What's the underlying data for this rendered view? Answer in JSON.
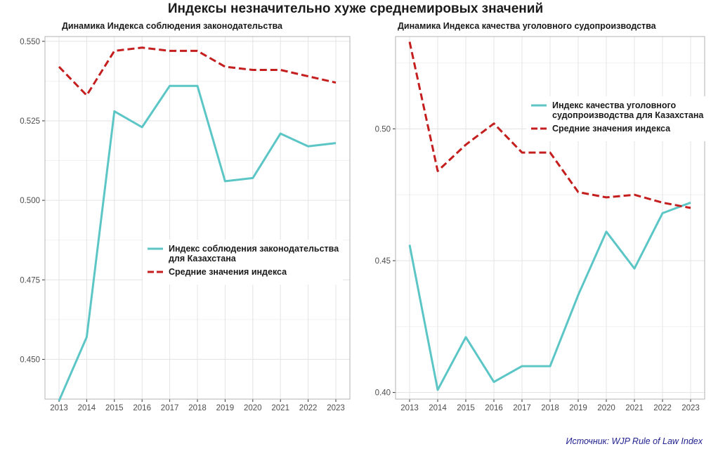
{
  "title": "Индексы незначительно хуже среднемировых значений",
  "source": "Источник: WJP Rule of Law Index",
  "colors": {
    "kazakhstan": "#5cc6c6",
    "average": "#c41e1e",
    "grid": "#e3e3e3",
    "panel_border": "#b3b3b3"
  },
  "chart_data": [
    {
      "type": "line",
      "title": "Динамика Индекса соблюдения законодательства",
      "xlabel": "",
      "ylabel": "",
      "x": [
        2013,
        2014,
        2015,
        2016,
        2017,
        2018,
        2019,
        2020,
        2021,
        2022,
        2023
      ],
      "ylim": [
        0.4375,
        0.5515
      ],
      "yticks": [
        0.45,
        0.475,
        0.5,
        0.525,
        0.55
      ],
      "ytick_labels": [
        "0.450",
        "0.475",
        "0.500",
        "0.525",
        "0.550"
      ],
      "grid": true,
      "series": [
        {
          "name": "Индекс соблюдения законодательства\nдля Казахстана",
          "style": "solid",
          "color": "#5cc6c6",
          "values": [
            0.437,
            0.457,
            0.528,
            0.523,
            0.536,
            0.536,
            0.506,
            0.507,
            0.521,
            0.517,
            0.518
          ]
        },
        {
          "name": "Средние значения индекса",
          "style": "dashed",
          "color": "#c41e1e",
          "values": [
            0.542,
            0.533,
            0.547,
            0.548,
            0.547,
            0.547,
            0.542,
            0.541,
            0.541,
            0.539,
            0.537
          ]
        }
      ]
    },
    {
      "type": "line",
      "title": "Динамика Индекса качества уголовного судопроизводства",
      "xlabel": "",
      "ylabel": "",
      "x": [
        2013,
        2014,
        2015,
        2016,
        2017,
        2018,
        2019,
        2020,
        2021,
        2022,
        2023
      ],
      "ylim": [
        0.3975,
        0.535
      ],
      "yticks": [
        0.4,
        0.45,
        0.5
      ],
      "ytick_labels": [
        "0.40",
        "0.45",
        "0.50"
      ],
      "grid": true,
      "series": [
        {
          "name": "Индекс качества уголовного\nсудопроизводства для Казахстана",
          "style": "solid",
          "color": "#5cc6c6",
          "values": [
            0.456,
            0.401,
            0.421,
            0.404,
            0.41,
            0.41,
            0.437,
            0.461,
            0.447,
            0.468,
            0.472
          ]
        },
        {
          "name": "Средние значения индекса",
          "style": "dashed",
          "color": "#c41e1e",
          "values": [
            0.533,
            0.484,
            0.494,
            0.502,
            0.491,
            0.491,
            0.476,
            0.474,
            0.475,
            0.472,
            0.47
          ]
        }
      ]
    }
  ]
}
